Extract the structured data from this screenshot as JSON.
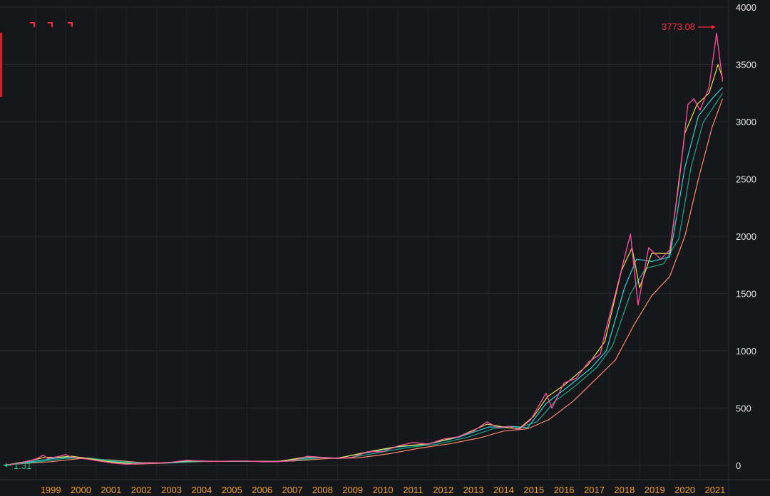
{
  "chart_data": {
    "type": "line",
    "title": "",
    "xlabel": "",
    "ylabel": "",
    "ylim": [
      0,
      4000
    ],
    "y_ticks": [
      "0",
      "500",
      "1000",
      "1500",
      "2000",
      "2500",
      "3000",
      "3500",
      "4000"
    ],
    "x_tick_labels": [
      "1999",
      "2000",
      "2001",
      "2002",
      "2003",
      "2004",
      "2005",
      "2006",
      "2007",
      "2008",
      "2009",
      "2010",
      "2011",
      "2012",
      "2013",
      "2014",
      "2015",
      "2016",
      "2017",
      "2018",
      "2019",
      "2020",
      "2021"
    ],
    "grid": true,
    "max_label": "3773.08",
    "min_label": "1.31",
    "colors": {
      "background": "#15171b",
      "price": "#ff4fa3",
      "ma_fast": "#e8e04a",
      "ma_mid": "#2fd0d8",
      "ma_slow": "#1aa88a",
      "ma_long": "#ff8a6b",
      "marker": "#ff2a3c"
    },
    "series": [
      {
        "values": [
          [
            1998.0,
            1.31
          ],
          [
            1998.5,
            22
          ],
          [
            1998.85,
            45
          ],
          [
            1999.05,
            60
          ],
          [
            1999.25,
            90
          ],
          [
            1999.4,
            60
          ],
          [
            1999.6,
            70
          ],
          [
            1999.8,
            80
          ],
          [
            2000.0,
            95
          ],
          [
            2000.15,
            75
          ],
          [
            2000.4,
            65
          ],
          [
            2000.7,
            55
          ],
          [
            2001.0,
            42
          ],
          [
            2001.5,
            22
          ],
          [
            2002.0,
            10
          ],
          [
            2002.5,
            15
          ],
          [
            2003.0,
            20
          ],
          [
            2003.5,
            28
          ],
          [
            2004.0,
            45
          ],
          [
            2004.5,
            38
          ],
          [
            2005.0,
            35
          ],
          [
            2005.5,
            38
          ],
          [
            2006.0,
            38
          ],
          [
            2006.5,
            32
          ],
          [
            2007.0,
            32
          ],
          [
            2007.5,
            40
          ],
          [
            2008.0,
            80
          ],
          [
            2008.5,
            70
          ],
          [
            2009.0,
            60
          ],
          [
            2009.5,
            70
          ],
          [
            2010.0,
            120
          ],
          [
            2010.5,
            120
          ],
          [
            2011.0,
            170
          ],
          [
            2011.5,
            200
          ],
          [
            2012.0,
            185
          ],
          [
            2012.5,
            230
          ],
          [
            2013.0,
            250
          ],
          [
            2013.5,
            300
          ],
          [
            2013.95,
            380
          ],
          [
            2014.3,
            330
          ],
          [
            2014.7,
            340
          ],
          [
            2015.0,
            310
          ],
          [
            2015.4,
            400
          ],
          [
            2015.9,
            630
          ],
          [
            2016.1,
            500
          ],
          [
            2016.5,
            720
          ],
          [
            2016.9,
            760
          ],
          [
            2017.3,
            900
          ],
          [
            2017.7,
            970
          ],
          [
            2017.85,
            1150
          ],
          [
            2018.2,
            1500
          ],
          [
            2018.7,
            2020
          ],
          [
            2018.95,
            1400
          ],
          [
            2019.3,
            1900
          ],
          [
            2019.7,
            1800
          ],
          [
            2020.0,
            1880
          ],
          [
            2020.3,
            2450
          ],
          [
            2020.6,
            3150
          ],
          [
            2020.8,
            3200
          ],
          [
            2021.0,
            3100
          ],
          [
            2021.3,
            3300
          ],
          [
            2021.55,
            3773.08
          ],
          [
            2021.75,
            3350
          ]
        ]
      },
      {
        "values": [
          [
            1998.0,
            2
          ],
          [
            1998.8,
            40
          ],
          [
            1999.3,
            70
          ],
          [
            1999.8,
            72
          ],
          [
            2000.2,
            80
          ],
          [
            2000.8,
            58
          ],
          [
            2001.5,
            30
          ],
          [
            2002.3,
            12
          ],
          [
            2003.2,
            20
          ],
          [
            2004.0,
            40
          ],
          [
            2005.0,
            36
          ],
          [
            2006.0,
            37
          ],
          [
            2007.0,
            33
          ],
          [
            2008.0,
            75
          ],
          [
            2009.0,
            62
          ],
          [
            2010.0,
            118
          ],
          [
            2011.0,
            165
          ],
          [
            2012.0,
            188
          ],
          [
            2013.0,
            250
          ],
          [
            2013.95,
            360
          ],
          [
            2014.5,
            335
          ],
          [
            2015.0,
            318
          ],
          [
            2015.5,
            430
          ],
          [
            2015.95,
            600
          ],
          [
            2016.5,
            700
          ],
          [
            2017.3,
            880
          ],
          [
            2017.85,
            1080
          ],
          [
            2018.4,
            1700
          ],
          [
            2018.75,
            1900
          ],
          [
            2019.0,
            1550
          ],
          [
            2019.4,
            1850
          ],
          [
            2020.0,
            1850
          ],
          [
            2020.5,
            2900
          ],
          [
            2020.9,
            3150
          ],
          [
            2021.3,
            3250
          ],
          [
            2021.6,
            3500
          ],
          [
            2021.75,
            3380
          ]
        ]
      },
      {
        "values": [
          [
            1998.0,
            3
          ],
          [
            1999.0,
            38
          ],
          [
            1999.8,
            68
          ],
          [
            2000.5,
            70
          ],
          [
            2001.3,
            40
          ],
          [
            2002.3,
            15
          ],
          [
            2003.3,
            20
          ],
          [
            2004.2,
            38
          ],
          [
            2005.5,
            36
          ],
          [
            2007.0,
            34
          ],
          [
            2008.2,
            70
          ],
          [
            2009.0,
            64
          ],
          [
            2010.0,
            112
          ],
          [
            2011.0,
            160
          ],
          [
            2012.0,
            185
          ],
          [
            2013.0,
            245
          ],
          [
            2014.0,
            335
          ],
          [
            2014.8,
            340
          ],
          [
            2015.3,
            330
          ],
          [
            2015.9,
            540
          ],
          [
            2016.6,
            680
          ],
          [
            2017.4,
            850
          ],
          [
            2017.9,
            1000
          ],
          [
            2018.5,
            1550
          ],
          [
            2018.9,
            1800
          ],
          [
            2019.4,
            1780
          ],
          [
            2020.0,
            1820
          ],
          [
            2020.5,
            2600
          ],
          [
            2020.95,
            3050
          ],
          [
            2021.4,
            3200
          ],
          [
            2021.75,
            3300
          ]
        ]
      },
      {
        "values": [
          [
            1998.0,
            4
          ],
          [
            1999.2,
            35
          ],
          [
            2000.0,
            62
          ],
          [
            2000.8,
            64
          ],
          [
            2001.6,
            40
          ],
          [
            2002.5,
            18
          ],
          [
            2003.5,
            22
          ],
          [
            2004.5,
            36
          ],
          [
            2006.0,
            36
          ],
          [
            2007.3,
            36
          ],
          [
            2008.4,
            66
          ],
          [
            2009.3,
            64
          ],
          [
            2010.3,
            108
          ],
          [
            2011.3,
            155
          ],
          [
            2012.3,
            185
          ],
          [
            2013.3,
            245
          ],
          [
            2014.2,
            325
          ],
          [
            2015.0,
            330
          ],
          [
            2015.6,
            380
          ],
          [
            2016.2,
            560
          ],
          [
            2016.9,
            700
          ],
          [
            2017.6,
            860
          ],
          [
            2018.1,
            1040
          ],
          [
            2018.7,
            1500
          ],
          [
            2019.2,
            1720
          ],
          [
            2019.8,
            1760
          ],
          [
            2020.3,
            1980
          ],
          [
            2020.7,
            2600
          ],
          [
            2021.1,
            2990
          ],
          [
            2021.5,
            3150
          ],
          [
            2021.75,
            3250
          ]
        ]
      },
      {
        "values": [
          [
            1998.0,
            5
          ],
          [
            1999.5,
            32
          ],
          [
            2000.5,
            60
          ],
          [
            2001.5,
            48
          ],
          [
            2002.5,
            24
          ],
          [
            2003.5,
            22
          ],
          [
            2004.5,
            34
          ],
          [
            2006.0,
            36
          ],
          [
            2007.5,
            38
          ],
          [
            2008.7,
            60
          ],
          [
            2009.7,
            66
          ],
          [
            2010.7,
            102
          ],
          [
            2011.7,
            150
          ],
          [
            2012.7,
            188
          ],
          [
            2013.7,
            240
          ],
          [
            2014.5,
            300
          ],
          [
            2015.3,
            320
          ],
          [
            2016.0,
            400
          ],
          [
            2016.8,
            560
          ],
          [
            2017.5,
            740
          ],
          [
            2018.2,
            920
          ],
          [
            2018.8,
            1220
          ],
          [
            2019.4,
            1480
          ],
          [
            2020.0,
            1650
          ],
          [
            2020.5,
            2000
          ],
          [
            2020.95,
            2500
          ],
          [
            2021.4,
            2950
          ],
          [
            2021.75,
            3200
          ]
        ]
      }
    ]
  }
}
